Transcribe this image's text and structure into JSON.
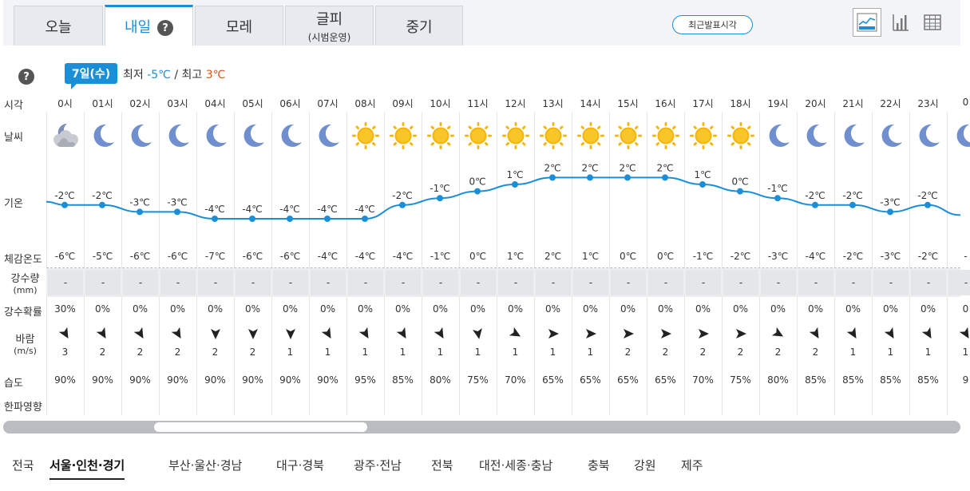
{
  "tabs": [
    {
      "label": "오늘",
      "sub": ""
    },
    {
      "label": "내일",
      "sub": ""
    },
    {
      "label": "모레",
      "sub": ""
    },
    {
      "label": "글피",
      "sub": "(시범운영)"
    },
    {
      "label": "중기",
      "sub": ""
    }
  ],
  "active_tab": 1,
  "help_glyph": "?",
  "recent_button": "최근발표시각",
  "view_icons": [
    "line-chart-icon",
    "bar-chart-icon",
    "table-icon"
  ],
  "date_label": "7일(수)",
  "summary": {
    "min_label": "최저",
    "min_value": "-5℃",
    "separator": "/",
    "max_label": "최고",
    "max_value": "3℃"
  },
  "labels": {
    "time": "시각",
    "weather": "날씨",
    "temp": "기온",
    "feels": "체감온도",
    "precip_line1": "강수량",
    "precip_line2": "(mm)",
    "prob": "강수확률",
    "wind_line1": "바람",
    "wind_line2": "(m/s)",
    "humidity": "습도",
    "cold": "한파영향"
  },
  "hours": [
    "0시",
    "01시",
    "02시",
    "03시",
    "04시",
    "05시",
    "06시",
    "07시",
    "08시",
    "09시",
    "10시",
    "11시",
    "12시",
    "13시",
    "14시",
    "15시",
    "16시",
    "17시",
    "18시",
    "19시",
    "20시",
    "21시",
    "22시",
    "23시",
    "0"
  ],
  "weather": [
    "cloudy-night",
    "moon",
    "moon",
    "moon",
    "moon",
    "moon",
    "moon",
    "moon",
    "sun",
    "sun",
    "sun",
    "sun",
    "sun",
    "sun",
    "sun",
    "sun",
    "sun",
    "sun",
    "sun",
    "moon",
    "moon",
    "moon",
    "moon",
    "moon",
    "moon"
  ],
  "temps": [
    -2,
    -2,
    -3,
    -3,
    -4,
    -4,
    -4,
    -4,
    -4,
    -2,
    -1,
    0,
    1,
    2,
    2,
    2,
    2,
    1,
    0,
    -1,
    -2,
    -2,
    -3,
    -2,
    null
  ],
  "temp_labels": [
    "-2℃",
    "-2℃",
    "-3℃",
    "-3℃",
    "-4℃",
    "-4℃",
    "-4℃",
    "-4℃",
    "-4℃",
    "-2℃",
    "-1℃",
    "0℃",
    "1℃",
    "2℃",
    "2℃",
    "2℃",
    "2℃",
    "1℃",
    "0℃",
    "-1℃",
    "-2℃",
    "-2℃",
    "-3℃",
    "-2℃",
    ""
  ],
  "feels": [
    "-6℃",
    "-5℃",
    "-6℃",
    "-6℃",
    "-7℃",
    "-6℃",
    "-6℃",
    "-4℃",
    "-4℃",
    "-4℃",
    "-1℃",
    "0℃",
    "1℃",
    "2℃",
    "1℃",
    "0℃",
    "0℃",
    "-1℃",
    "-2℃",
    "-3℃",
    "-4℃",
    "-2℃",
    "-3℃",
    "-2℃",
    "-"
  ],
  "precip": [
    "-",
    "-",
    "-",
    "-",
    "-",
    "-",
    "-",
    "-",
    "-",
    "-",
    "-",
    "-",
    "-",
    "-",
    "-",
    "-",
    "-",
    "-",
    "-",
    "-",
    "-",
    "-",
    "-",
    "-",
    "-"
  ],
  "prob": [
    "30%",
    "0%",
    "0%",
    "0%",
    "0%",
    "0%",
    "0%",
    "0%",
    "0%",
    "0%",
    "0%",
    "0%",
    "0%",
    "0%",
    "0%",
    "0%",
    "0%",
    "0%",
    "0%",
    "0%",
    "0%",
    "0%",
    "0%",
    "0%",
    "0"
  ],
  "wind_speed": [
    "3",
    "2",
    "2",
    "2",
    "2",
    "2",
    "1",
    "1",
    "1",
    "1",
    "1",
    "1",
    "1",
    "1",
    "1",
    "2",
    "2",
    "2",
    "2",
    "2",
    "2",
    "1",
    "1",
    "1",
    "1"
  ],
  "wind_dir_deg": [
    150,
    150,
    150,
    150,
    180,
    180,
    180,
    150,
    150,
    150,
    150,
    170,
    120,
    90,
    90,
    90,
    90,
    90,
    90,
    120,
    150,
    150,
    150,
    150,
    150
  ],
  "humidity": [
    "90%",
    "90%",
    "90%",
    "90%",
    "90%",
    "90%",
    "90%",
    "90%",
    "95%",
    "85%",
    "80%",
    "75%",
    "70%",
    "65%",
    "65%",
    "65%",
    "65%",
    "70%",
    "75%",
    "80%",
    "85%",
    "85%",
    "85%",
    "85%",
    "9"
  ],
  "regions": [
    "전국",
    "서울·인천·경기",
    "부산·울산·경남",
    "대구·경북",
    "광주·전남",
    "전북",
    "대전·세종·충남",
    "충북",
    "강원",
    "제주"
  ],
  "active_region": 1,
  "colors": {
    "accent": "#1a8fd8",
    "cold": "#1a8fd8",
    "warm": "#e0531b",
    "sun": "#f5b400",
    "moon": "#6f8fcf"
  }
}
